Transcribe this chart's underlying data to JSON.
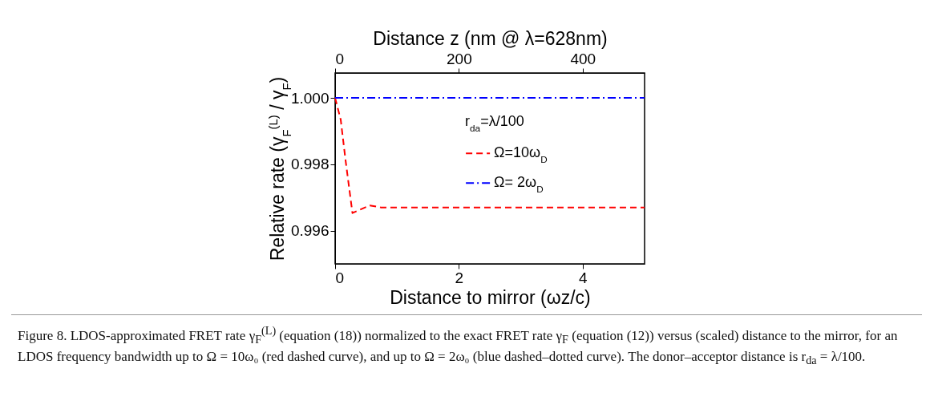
{
  "chart_data": {
    "type": "line",
    "xlabel": "Distance to mirror (ωz/c)",
    "ylabel": "Relative rate (γ$_{F}$$^{(L)}$ / γ$_{F}$)",
    "x2label": "Distance z (nm @ λ=628nm)",
    "xlim": [
      0,
      5
    ],
    "xticks": [
      0,
      2,
      4
    ],
    "x2lim": [
      0,
      500
    ],
    "x2ticks": [
      0,
      200,
      400
    ],
    "ylim": [
      0.995,
      1.00075
    ],
    "yticks": [
      {
        "value": 0.996,
        "label": "0.996"
      },
      {
        "value": 0.998,
        "label": "0.998"
      },
      {
        "value": 1,
        "label": "1.000"
      }
    ],
    "legend_title": "r$_{da}$=λ/100",
    "legend": "right",
    "grid": false,
    "series": [
      {
        "name": "Ω=10ω$_{D}$",
        "color": "#ff0000",
        "line_style": "dashed",
        "x": [
          0,
          0.09,
          0.17,
          0.28,
          0.56,
          0.74,
          1,
          5
        ],
        "values": [
          1,
          0.99935,
          0.9981,
          0.99653,
          0.99676,
          0.9967,
          0.9967,
          0.9967
        ]
      },
      {
        "name": "Ω= 2ω$_{D}$",
        "color": "#0000ff",
        "line_style": "dashdot",
        "x": [
          0,
          5
        ],
        "values": [
          1,
          1
        ]
      }
    ],
    "annotations": [
      "Figure 8. LDOS-approximated FRET rate γ$_{F}$$^{(L)}$ (equation (18)) normalized to the exact FRET rate γ$_{F}$ (equation (12)) versus (scaled) distance to the mirror, for an LDOS frequency bandwidth up to Ω = 10ω₀ (red dashed curve), and up to Ω = 2ω₀ (blue dashed–dotted curve). The donor–acceptor distance is r$_{da}$ = λ/100."
    ]
  }
}
